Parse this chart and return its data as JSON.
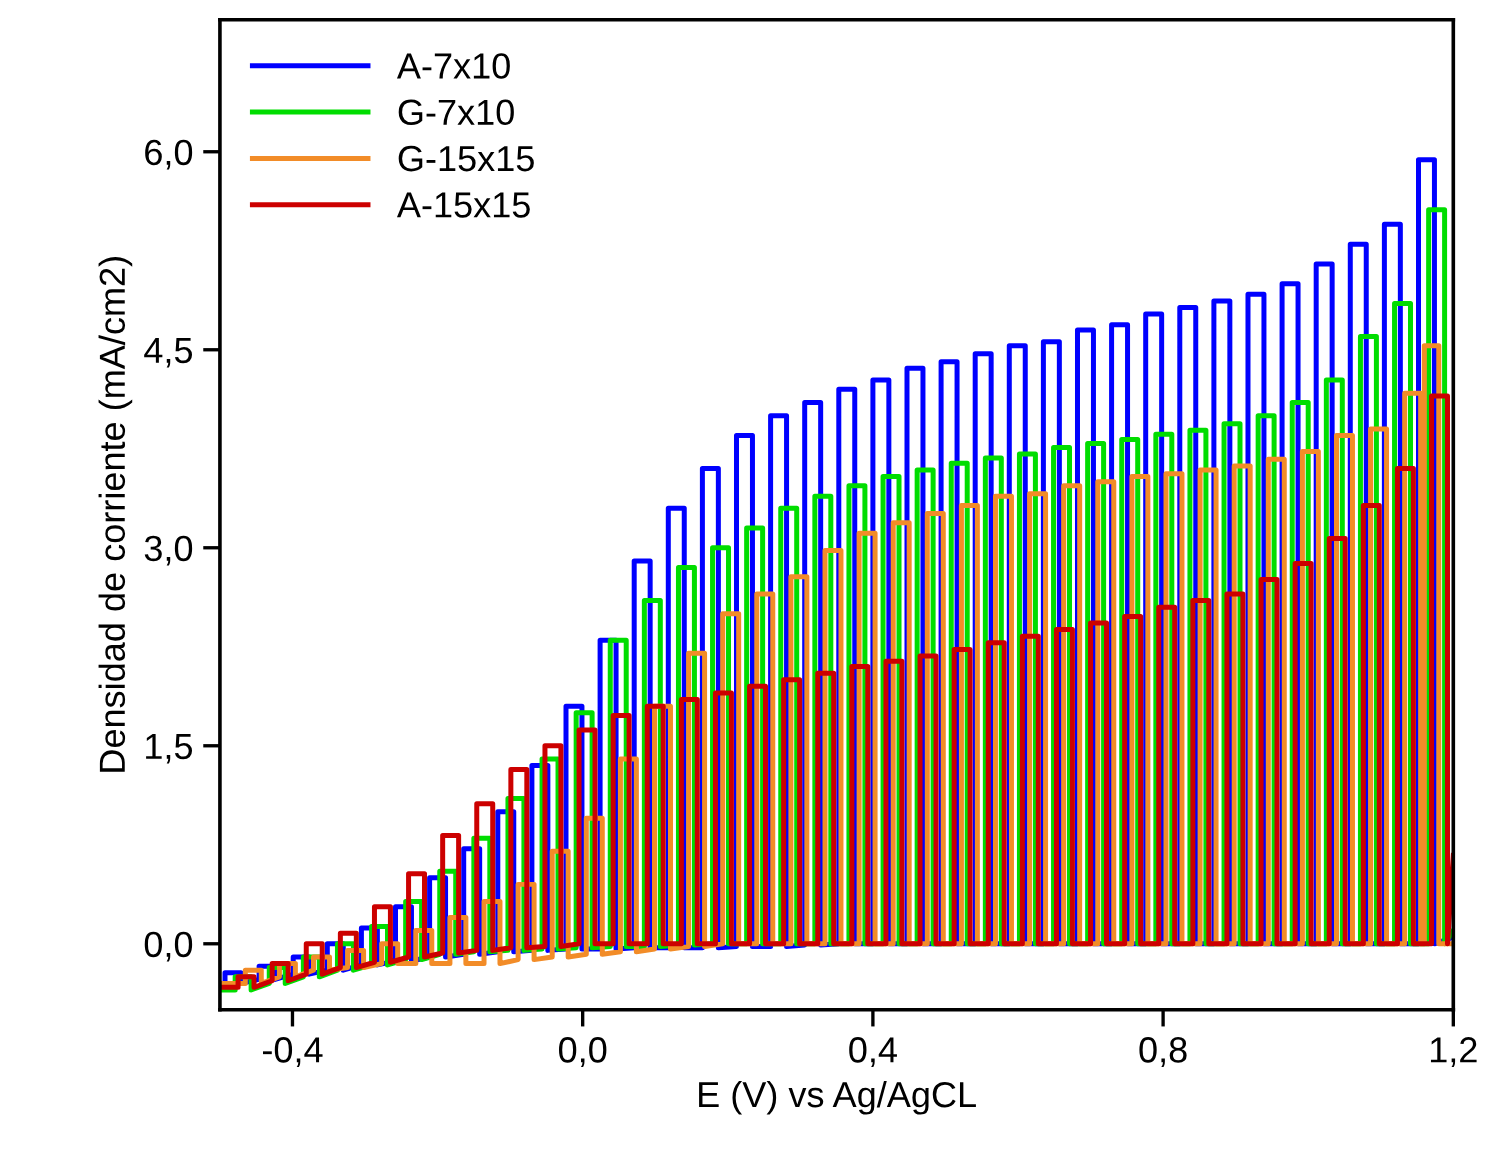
{
  "chart_data": {
    "type": "line",
    "xlabel": "E (V) vs Ag/AgCL",
    "ylabel": "Densidad de corriente (mA/cm2)",
    "xlim": [
      -0.5,
      1.2
    ],
    "ylim": [
      -0.5,
      7.0
    ],
    "xticks": [
      {
        "value": -0.4,
        "label": "-0,4"
      },
      {
        "value": 0.0,
        "label": "0,0"
      },
      {
        "value": 0.4,
        "label": "0,4"
      },
      {
        "value": 0.8,
        "label": "0,8"
      },
      {
        "value": 1.2,
        "label": "1,2"
      }
    ],
    "yticks": [
      {
        "value": 0.0,
        "label": "0,0"
      },
      {
        "value": 1.5,
        "label": "1,5"
      },
      {
        "value": 3.0,
        "label": "3,0"
      },
      {
        "value": 4.5,
        "label": "4,5"
      },
      {
        "value": 6.0,
        "label": "6,0"
      }
    ],
    "grid": false,
    "legend": "top left",
    "marker": "none",
    "line_style": "solid",
    "series": [
      {
        "name": "A-7x10",
        "color": "#0000ff",
        "x": [
          -0.5,
          -0.493,
          -0.493,
          -0.471,
          -0.471,
          -0.446,
          -0.446,
          -0.424,
          -0.424,
          -0.399,
          -0.399,
          -0.377,
          -0.377,
          -0.352,
          -0.352,
          -0.33,
          -0.33,
          -0.305,
          -0.305,
          -0.283,
          -0.283,
          -0.258,
          -0.258,
          -0.236,
          -0.236,
          -0.211,
          -0.211,
          -0.189,
          -0.189,
          -0.164,
          -0.164,
          -0.142,
          -0.142,
          -0.117,
          -0.117,
          -0.095,
          -0.095,
          -0.07,
          -0.07,
          -0.048,
          -0.048,
          -0.023,
          -0.023,
          -0.001,
          -0.001,
          0.024,
          0.024,
          0.046,
          0.046,
          0.071,
          0.071,
          0.093,
          0.093,
          0.118,
          0.118,
          0.14,
          0.14,
          0.165,
          0.165,
          0.187,
          0.187,
          0.212,
          0.212,
          0.234,
          0.234,
          0.259,
          0.259,
          0.281,
          0.281,
          0.306,
          0.306,
          0.328,
          0.328,
          0.353,
          0.353,
          0.375,
          0.375,
          0.4,
          0.4,
          0.422,
          0.422,
          0.447,
          0.447,
          0.469,
          0.469,
          0.494,
          0.494,
          0.516,
          0.516,
          0.541,
          0.541,
          0.563,
          0.563,
          0.588,
          0.588,
          0.61,
          0.61,
          0.635,
          0.635,
          0.657,
          0.657,
          0.682,
          0.682,
          0.704,
          0.704,
          0.729,
          0.729,
          0.751,
          0.751,
          0.776,
          0.776,
          0.798,
          0.798,
          0.823,
          0.823,
          0.845,
          0.845,
          0.87,
          0.87,
          0.892,
          0.892,
          0.917,
          0.917,
          0.939,
          0.939,
          0.964,
          0.964,
          0.986,
          0.986,
          1.011,
          1.011,
          1.033,
          1.033,
          1.058,
          1.058,
          1.08,
          1.08,
          1.105,
          1.105,
          1.127,
          1.127,
          1.152,
          1.152,
          1.174,
          1.174,
          1.2
        ],
        "values": [
          -0.3,
          -0.3,
          -0.22,
          -0.22,
          -0.3,
          -0.27,
          -0.17,
          -0.17,
          -0.27,
          -0.23,
          -0.1,
          -0.1,
          -0.23,
          -0.2,
          0.0,
          0.0,
          -0.2,
          -0.16,
          0.12,
          0.12,
          -0.16,
          -0.13,
          0.28,
          0.28,
          -0.13,
          -0.1,
          0.5,
          0.5,
          -0.1,
          -0.08,
          0.72,
          0.72,
          -0.08,
          -0.06,
          1.0,
          1.0,
          -0.06,
          -0.05,
          1.35,
          1.35,
          -0.05,
          -0.04,
          1.8,
          1.8,
          -0.04,
          -0.04,
          2.3,
          2.3,
          -0.04,
          -0.03,
          2.9,
          2.9,
          -0.03,
          -0.03,
          3.3,
          3.3,
          -0.03,
          -0.03,
          3.6,
          3.6,
          -0.03,
          -0.02,
          3.85,
          3.85,
          -0.02,
          -0.02,
          4.0,
          4.0,
          -0.02,
          -0.01,
          4.1,
          4.1,
          -0.01,
          0.0,
          4.2,
          4.2,
          0.0,
          0.0,
          4.27,
          4.27,
          0.0,
          0.0,
          4.36,
          4.36,
          0.0,
          0.0,
          4.41,
          4.41,
          0.0,
          0.0,
          4.47,
          4.47,
          0.0,
          0.0,
          4.53,
          4.53,
          0.0,
          0.0,
          4.56,
          4.56,
          0.0,
          0.0,
          4.65,
          4.65,
          0.0,
          0.0,
          4.69,
          4.69,
          0.0,
          0.0,
          4.77,
          4.77,
          0.0,
          0.0,
          4.82,
          4.82,
          0.0,
          0.0,
          4.87,
          4.87,
          0.0,
          0.0,
          4.92,
          4.92,
          0.0,
          0.0,
          5.0,
          5.0,
          0.0,
          0.0,
          5.15,
          5.15,
          0.0,
          0.0,
          5.3,
          5.3,
          0.0,
          0.0,
          5.45,
          5.45,
          0.0,
          0.0,
          5.94,
          5.94,
          0.0,
          0.05
        ]
      },
      {
        "name": "G-7x10",
        "color": "#00dd00",
        "x": [
          -0.5,
          -0.479,
          -0.479,
          -0.457,
          -0.457,
          -0.432,
          -0.432,
          -0.41,
          -0.41,
          -0.385,
          -0.385,
          -0.363,
          -0.363,
          -0.338,
          -0.338,
          -0.316,
          -0.316,
          -0.291,
          -0.291,
          -0.269,
          -0.269,
          -0.244,
          -0.244,
          -0.222,
          -0.222,
          -0.197,
          -0.197,
          -0.175,
          -0.175,
          -0.15,
          -0.15,
          -0.128,
          -0.128,
          -0.103,
          -0.103,
          -0.081,
          -0.081,
          -0.056,
          -0.056,
          -0.034,
          -0.034,
          -0.009,
          -0.009,
          0.013,
          0.013,
          0.038,
          0.038,
          0.06,
          0.06,
          0.085,
          0.085,
          0.107,
          0.107,
          0.132,
          0.132,
          0.154,
          0.154,
          0.179,
          0.179,
          0.201,
          0.201,
          0.226,
          0.226,
          0.248,
          0.248,
          0.273,
          0.273,
          0.295,
          0.295,
          0.32,
          0.32,
          0.342,
          0.342,
          0.367,
          0.367,
          0.389,
          0.389,
          0.414,
          0.414,
          0.436,
          0.436,
          0.461,
          0.461,
          0.483,
          0.483,
          0.508,
          0.508,
          0.53,
          0.53,
          0.555,
          0.555,
          0.577,
          0.577,
          0.602,
          0.602,
          0.624,
          0.624,
          0.649,
          0.649,
          0.671,
          0.671,
          0.696,
          0.696,
          0.718,
          0.718,
          0.743,
          0.743,
          0.765,
          0.765,
          0.79,
          0.79,
          0.812,
          0.812,
          0.837,
          0.837,
          0.859,
          0.859,
          0.884,
          0.884,
          0.906,
          0.906,
          0.931,
          0.931,
          0.953,
          0.953,
          0.978,
          0.978,
          1.0,
          1.0,
          1.025,
          1.025,
          1.047,
          1.047,
          1.072,
          1.072,
          1.094,
          1.094,
          1.119,
          1.119,
          1.141,
          1.141,
          1.166,
          1.166,
          1.188,
          1.188,
          1.2
        ],
        "values": [
          -0.35,
          -0.35,
          -0.25,
          -0.25,
          -0.35,
          -0.3,
          -0.18,
          -0.18,
          -0.3,
          -0.25,
          -0.1,
          -0.1,
          -0.25,
          -0.2,
          0.0,
          0.0,
          -0.2,
          -0.16,
          0.13,
          0.13,
          -0.16,
          -0.12,
          0.32,
          0.32,
          -0.12,
          -0.08,
          0.55,
          0.55,
          -0.08,
          -0.06,
          0.8,
          0.8,
          -0.06,
          -0.05,
          1.1,
          1.1,
          -0.05,
          -0.04,
          1.4,
          1.4,
          -0.04,
          -0.03,
          1.75,
          1.75,
          -0.03,
          -0.02,
          2.3,
          2.3,
          -0.02,
          -0.02,
          2.6,
          2.6,
          -0.02,
          -0.01,
          2.85,
          2.85,
          -0.01,
          0.0,
          3.0,
          3.0,
          0.0,
          0.0,
          3.15,
          3.15,
          0.0,
          0.0,
          3.3,
          3.3,
          0.0,
          0.0,
          3.39,
          3.39,
          0.0,
          0.0,
          3.47,
          3.47,
          0.0,
          0.0,
          3.54,
          3.54,
          0.0,
          0.0,
          3.59,
          3.59,
          0.0,
          0.0,
          3.64,
          3.64,
          0.0,
          0.0,
          3.68,
          3.68,
          0.0,
          0.0,
          3.71,
          3.71,
          0.0,
          0.0,
          3.76,
          3.76,
          0.0,
          0.0,
          3.79,
          3.79,
          0.0,
          0.0,
          3.82,
          3.82,
          0.0,
          0.0,
          3.86,
          3.86,
          0.0,
          0.0,
          3.89,
          3.89,
          0.0,
          0.0,
          3.94,
          3.94,
          0.0,
          0.0,
          4.0,
          4.0,
          0.0,
          0.0,
          4.1,
          4.1,
          0.0,
          0.0,
          4.27,
          4.27,
          0.0,
          0.0,
          4.6,
          4.6,
          0.0,
          0.0,
          4.85,
          4.85,
          0.0,
          0.0,
          5.56,
          5.56,
          0.0,
          0.1
        ]
      },
      {
        "name": "G-15x15",
        "color": "#f28c28",
        "x": [
          -0.5,
          -0.465,
          -0.465,
          -0.443,
          -0.443,
          -0.418,
          -0.418,
          -0.396,
          -0.396,
          -0.371,
          -0.371,
          -0.349,
          -0.349,
          -0.324,
          -0.324,
          -0.302,
          -0.302,
          -0.277,
          -0.277,
          -0.255,
          -0.255,
          -0.23,
          -0.23,
          -0.208,
          -0.208,
          -0.183,
          -0.183,
          -0.161,
          -0.161,
          -0.136,
          -0.136,
          -0.114,
          -0.114,
          -0.089,
          -0.089,
          -0.067,
          -0.067,
          -0.042,
          -0.042,
          -0.02,
          -0.02,
          0.005,
          0.005,
          0.027,
          0.027,
          0.052,
          0.052,
          0.074,
          0.074,
          0.099,
          0.099,
          0.121,
          0.121,
          0.146,
          0.146,
          0.168,
          0.168,
          0.193,
          0.193,
          0.215,
          0.215,
          0.24,
          0.24,
          0.262,
          0.262,
          0.287,
          0.287,
          0.309,
          0.309,
          0.334,
          0.334,
          0.356,
          0.356,
          0.381,
          0.381,
          0.403,
          0.403,
          0.428,
          0.428,
          0.45,
          0.45,
          0.475,
          0.475,
          0.497,
          0.497,
          0.522,
          0.522,
          0.544,
          0.544,
          0.569,
          0.569,
          0.591,
          0.591,
          0.616,
          0.616,
          0.638,
          0.638,
          0.663,
          0.663,
          0.685,
          0.685,
          0.71,
          0.71,
          0.732,
          0.732,
          0.757,
          0.757,
          0.779,
          0.779,
          0.804,
          0.804,
          0.826,
          0.826,
          0.851,
          0.851,
          0.873,
          0.873,
          0.898,
          0.898,
          0.92,
          0.92,
          0.945,
          0.945,
          0.967,
          0.967,
          0.992,
          0.992,
          1.014,
          1.014,
          1.039,
          1.039,
          1.061,
          1.061,
          1.086,
          1.086,
          1.108,
          1.108,
          1.133,
          1.133,
          1.155,
          1.155,
          1.16,
          1.16,
          1.18,
          1.18,
          1.2
        ],
        "values": [
          -0.3,
          -0.3,
          -0.2,
          -0.2,
          -0.3,
          -0.25,
          -0.15,
          -0.15,
          -0.25,
          -0.2,
          -0.1,
          -0.1,
          -0.2,
          -0.18,
          -0.05,
          -0.05,
          -0.18,
          -0.15,
          0.0,
          0.0,
          -0.15,
          -0.15,
          0.1,
          0.1,
          -0.15,
          -0.15,
          0.2,
          0.2,
          -0.15,
          -0.15,
          0.32,
          0.32,
          -0.15,
          -0.12,
          0.45,
          0.45,
          -0.12,
          -0.1,
          0.7,
          0.7,
          -0.1,
          -0.08,
          0.95,
          0.95,
          -0.08,
          -0.06,
          1.4,
          1.4,
          -0.06,
          -0.04,
          1.8,
          1.8,
          -0.04,
          -0.02,
          2.2,
          2.2,
          -0.02,
          0.0,
          2.5,
          2.5,
          0.0,
          0.0,
          2.65,
          2.65,
          0.0,
          0.0,
          2.78,
          2.78,
          0.0,
          0.0,
          2.98,
          2.98,
          0.0,
          0.0,
          3.11,
          3.11,
          0.0,
          0.0,
          3.19,
          3.19,
          0.0,
          0.0,
          3.26,
          3.26,
          0.0,
          0.0,
          3.32,
          3.32,
          0.0,
          0.0,
          3.39,
          3.39,
          0.0,
          0.0,
          3.41,
          3.41,
          0.0,
          0.0,
          3.47,
          3.47,
          0.0,
          0.0,
          3.5,
          3.5,
          0.0,
          0.0,
          3.54,
          3.54,
          0.0,
          0.0,
          3.56,
          3.56,
          0.0,
          0.0,
          3.59,
          3.59,
          0.0,
          0.0,
          3.62,
          3.62,
          0.0,
          0.0,
          3.67,
          3.67,
          0.0,
          0.0,
          3.73,
          3.73,
          0.0,
          0.0,
          3.85,
          3.85,
          0.0,
          0.0,
          3.9,
          3.9,
          0.0,
          0.0,
          4.17,
          4.17,
          0.0,
          0.0,
          4.53,
          4.53,
          0.0,
          0.0
        ]
      },
      {
        "name": "A-15x15",
        "color": "#cc0000",
        "x": [
          -0.5,
          -0.475,
          -0.475,
          -0.453,
          -0.453,
          -0.428,
          -0.428,
          -0.406,
          -0.406,
          -0.381,
          -0.381,
          -0.359,
          -0.359,
          -0.334,
          -0.334,
          -0.312,
          -0.312,
          -0.287,
          -0.287,
          -0.265,
          -0.265,
          -0.24,
          -0.24,
          -0.218,
          -0.218,
          -0.193,
          -0.193,
          -0.171,
          -0.171,
          -0.146,
          -0.146,
          -0.124,
          -0.124,
          -0.099,
          -0.099,
          -0.077,
          -0.077,
          -0.052,
          -0.052,
          -0.03,
          -0.03,
          -0.005,
          -0.005,
          0.017,
          0.017,
          0.042,
          0.042,
          0.064,
          0.064,
          0.089,
          0.089,
          0.111,
          0.111,
          0.136,
          0.136,
          0.158,
          0.158,
          0.183,
          0.183,
          0.205,
          0.205,
          0.23,
          0.23,
          0.252,
          0.252,
          0.277,
          0.277,
          0.299,
          0.299,
          0.324,
          0.324,
          0.346,
          0.346,
          0.371,
          0.371,
          0.393,
          0.393,
          0.418,
          0.418,
          0.44,
          0.44,
          0.465,
          0.465,
          0.487,
          0.487,
          0.512,
          0.512,
          0.534,
          0.534,
          0.559,
          0.559,
          0.581,
          0.581,
          0.606,
          0.606,
          0.628,
          0.628,
          0.653,
          0.653,
          0.675,
          0.675,
          0.7,
          0.7,
          0.722,
          0.722,
          0.747,
          0.747,
          0.769,
          0.769,
          0.794,
          0.794,
          0.816,
          0.816,
          0.841,
          0.841,
          0.863,
          0.863,
          0.888,
          0.888,
          0.91,
          0.91,
          0.935,
          0.935,
          0.957,
          0.957,
          0.982,
          0.982,
          1.004,
          1.004,
          1.029,
          1.029,
          1.051,
          1.051,
          1.076,
          1.076,
          1.098,
          1.098,
          1.123,
          1.123,
          1.145,
          1.145,
          1.17,
          1.17,
          1.192,
          1.192,
          1.2
        ],
        "values": [
          -0.33,
          -0.33,
          -0.25,
          -0.25,
          -0.33,
          -0.28,
          -0.15,
          -0.15,
          -0.28,
          -0.23,
          0.0,
          0.0,
          -0.23,
          -0.18,
          0.08,
          0.08,
          -0.18,
          -0.14,
          0.28,
          0.28,
          -0.14,
          -0.1,
          0.53,
          0.53,
          -0.1,
          -0.07,
          0.82,
          0.82,
          -0.07,
          -0.05,
          1.06,
          1.06,
          -0.05,
          -0.03,
          1.32,
          1.32,
          -0.03,
          -0.02,
          1.5,
          1.5,
          -0.02,
          0.0,
          1.62,
          1.62,
          0.0,
          0.0,
          1.73,
          1.73,
          0.0,
          0.0,
          1.8,
          1.8,
          0.0,
          0.0,
          1.85,
          1.85,
          0.0,
          0.0,
          1.9,
          1.9,
          0.0,
          0.0,
          1.95,
          1.95,
          0.0,
          0.0,
          2.0,
          2.0,
          0.0,
          0.0,
          2.05,
          2.05,
          0.0,
          0.0,
          2.1,
          2.1,
          0.0,
          0.0,
          2.14,
          2.14,
          0.0,
          0.0,
          2.18,
          2.18,
          0.0,
          0.0,
          2.23,
          2.23,
          0.0,
          0.0,
          2.28,
          2.28,
          0.0,
          0.0,
          2.33,
          2.33,
          0.0,
          0.0,
          2.38,
          2.38,
          0.0,
          0.0,
          2.43,
          2.43,
          0.0,
          0.0,
          2.48,
          2.48,
          0.0,
          0.0,
          2.55,
          2.55,
          0.0,
          0.0,
          2.6,
          2.6,
          0.0,
          0.0,
          2.65,
          2.65,
          0.0,
          0.0,
          2.76,
          2.76,
          0.0,
          0.0,
          2.88,
          2.88,
          0.0,
          0.0,
          3.07,
          3.07,
          0.0,
          0.0,
          3.32,
          3.32,
          0.0,
          0.0,
          3.6,
          3.6,
          0.0,
          0.0,
          4.15,
          4.15,
          0.0,
          0.67
        ]
      }
    ]
  }
}
